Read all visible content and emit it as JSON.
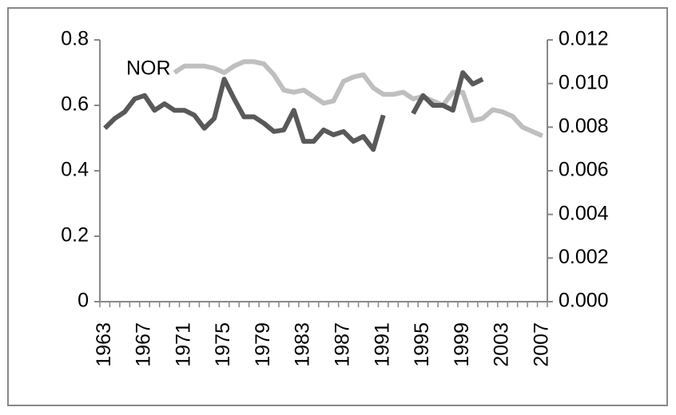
{
  "chart_data": {
    "type": "line",
    "annotation": "NOR",
    "categories": [
      1963,
      null,
      null,
      null,
      1967,
      null,
      null,
      null,
      1971,
      null,
      null,
      null,
      1975,
      null,
      null,
      null,
      1979,
      null,
      null,
      null,
      1983,
      null,
      null,
      null,
      1987,
      null,
      null,
      null,
      1991,
      null,
      null,
      null,
      1995,
      null,
      null,
      null,
      1999,
      null,
      null,
      null,
      2003,
      null,
      null,
      null,
      2007
    ],
    "series": [
      {
        "color": "#595959",
        "values": [
          0.53,
          0.56,
          0.58,
          0.62,
          0.63,
          0.585,
          0.605,
          0.585,
          0.585,
          0.57,
          0.53,
          0.56,
          0.68,
          0.62,
          0.565,
          0.565,
          0.545,
          0.52,
          0.525,
          0.585,
          0.49,
          0.49,
          0.525,
          0.51,
          0.52,
          0.49,
          0.505,
          0.465,
          0.57,
          null,
          null,
          0.575,
          0.63,
          0.6,
          0.6,
          0.585,
          0.7,
          0.665,
          0.68,
          null,
          null,
          null,
          null,
          null,
          null
        ]
      },
      {
        "color": "#bfbfbf",
        "axis": "y2",
        "values": [
          null,
          null,
          null,
          null,
          null,
          null,
          null,
          0.0105,
          0.0108,
          0.0108,
          0.0108,
          0.0107,
          0.0105,
          0.0108,
          0.011,
          0.011,
          0.0109,
          0.0104,
          0.0097,
          0.0096,
          0.0097,
          0.0094,
          0.0091,
          0.0092,
          0.0101,
          0.0103,
          0.0104,
          0.0098,
          0.0095,
          0.0095,
          0.0096,
          0.0093,
          0.0094,
          0.0092,
          0.009,
          0.0096,
          0.0096,
          0.0083,
          0.0084,
          0.0088,
          0.0087,
          0.0085,
          0.008,
          0.0078,
          0.0076
        ]
      }
    ],
    "ylim": [
      0,
      0.8
    ],
    "yticks": [
      0,
      0.2,
      0.4,
      0.6,
      0.8
    ],
    "y2lim": [
      0,
      0.012
    ],
    "y2ticks": [
      {
        "value": 0,
        "label": "0.000"
      },
      {
        "value": 0.002,
        "label": "0.002"
      },
      {
        "value": 0.004,
        "label": "0.004"
      },
      {
        "value": 0.006,
        "label": "0.006"
      },
      {
        "value": 0.008,
        "label": "0.008"
      },
      {
        "value": 0.01,
        "label": "0.010"
      },
      {
        "value": 0.012,
        "label": "0.012"
      }
    ]
  }
}
